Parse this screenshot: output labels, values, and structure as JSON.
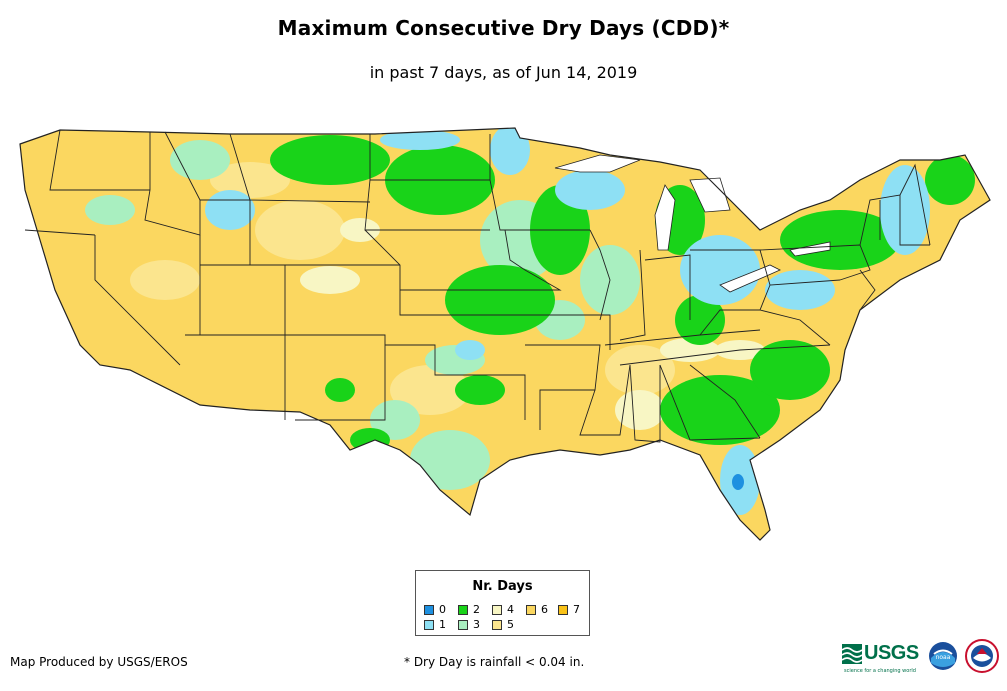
{
  "title": "Maximum Consecutive Dry Days (CDD)*",
  "subtitle": "in past 7 days, as of Jun 14, 2019",
  "legend": {
    "title": "Nr. Days",
    "items": [
      {
        "label": "0",
        "color": "#1e90e0"
      },
      {
        "label": "1",
        "color": "#8ee0f4"
      },
      {
        "label": "2",
        "color": "#19d319"
      },
      {
        "label": "3",
        "color": "#a9efc0"
      },
      {
        "label": "4",
        "color": "#f8f6c4"
      },
      {
        "label": "5",
        "color": "#fbe58e"
      },
      {
        "label": "6",
        "color": "#fbd760"
      },
      {
        "label": "7",
        "color": "#f9c218"
      }
    ]
  },
  "footer": {
    "producer": "Map Produced by USGS/EROS",
    "note": "* Dry Day is rainfall < 0.04 in."
  },
  "logos": {
    "usgs": "USGS",
    "usgs_tagline": "science for a changing world",
    "noaa": "noaa"
  },
  "colors": {
    "state_border": "#222222",
    "base_dry": "#fbd760",
    "wet_green": "#19d319",
    "light_blue": "#8ee0f4",
    "light_green": "#a9efc0",
    "pale_yellow": "#f8f6c4"
  }
}
